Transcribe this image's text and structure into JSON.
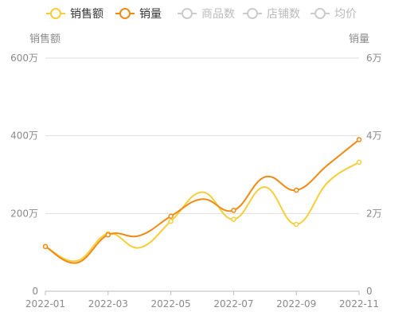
{
  "chart_data": {
    "type": "line",
    "x": [
      "2022-01",
      "2022-02",
      "2022-03",
      "2022-04",
      "2022-05",
      "2022-06",
      "2022-07",
      "2022-08",
      "2022-09",
      "2022-10",
      "2022-11"
    ],
    "x_tick_labels": [
      "2022-01",
      "2022-03",
      "2022-05",
      "2022-07",
      "2022-09",
      "2022-11"
    ],
    "left_axis": {
      "name": "销售额",
      "ticks": [
        "0",
        "200万",
        "400万",
        "600万"
      ],
      "min": 0,
      "max": 6000000
    },
    "right_axis": {
      "name": "销量",
      "ticks": [
        "0",
        "2万",
        "4万",
        "6万"
      ],
      "min": 0,
      "max": 60000
    },
    "legend": {
      "placement": "top",
      "items": [
        {
          "name": "销售额",
          "color": "#F7CE3A",
          "active": true
        },
        {
          "name": "销量",
          "color": "#F08A14",
          "active": true
        },
        {
          "name": "商品数",
          "color": "#CCCCCC",
          "active": false
        },
        {
          "name": "店铺数",
          "color": "#CCCCCC",
          "active": false
        },
        {
          "name": "均价",
          "color": "#CCCCCC",
          "active": false
        }
      ]
    },
    "series": [
      {
        "name": "销售额",
        "axis": "left",
        "color": "#F7CE3A",
        "values": [
          1150000,
          780000,
          1480000,
          1120000,
          1800000,
          2550000,
          1850000,
          2680000,
          1720000,
          2800000,
          3320000
        ]
      },
      {
        "name": "销量",
        "axis": "right",
        "color": "#F08A14",
        "values": [
          11500,
          7300,
          14500,
          14300,
          19300,
          23700,
          20800,
          29400,
          26000,
          32500,
          39000
        ]
      }
    ],
    "marker_every": 2,
    "grid": true,
    "smooth": true
  }
}
